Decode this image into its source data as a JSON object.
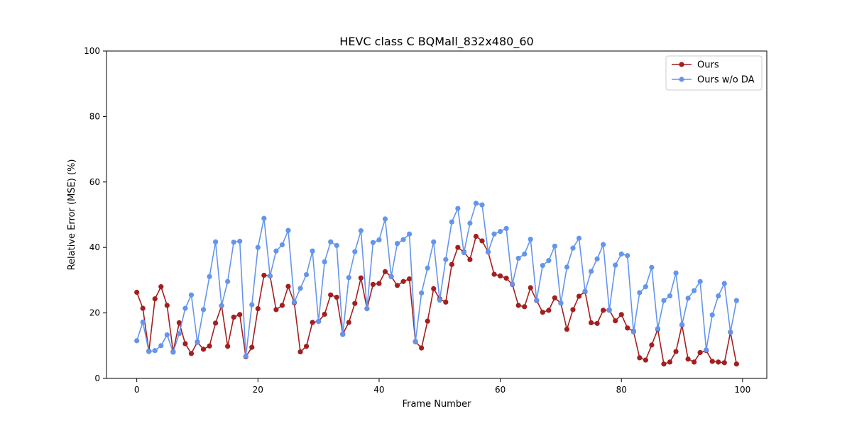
{
  "chart_data": {
    "type": "line",
    "title": "HEVC class C BQMall_832x480_60",
    "xlabel": "Frame Number",
    "ylabel": "Relative Error (MSE) (%)",
    "xlim": [
      -5,
      104
    ],
    "ylim": [
      0,
      100
    ],
    "xticks": [
      0,
      20,
      40,
      60,
      80,
      100
    ],
    "yticks": [
      0,
      20,
      40,
      60,
      80,
      100
    ],
    "grid": false,
    "legend_position": "top-right",
    "x": [
      0,
      1,
      2,
      3,
      4,
      5,
      6,
      7,
      8,
      9,
      10,
      11,
      12,
      13,
      14,
      15,
      16,
      17,
      18,
      19,
      20,
      21,
      22,
      23,
      24,
      25,
      26,
      27,
      28,
      29,
      30,
      31,
      32,
      33,
      34,
      35,
      36,
      37,
      38,
      39,
      40,
      41,
      42,
      43,
      44,
      45,
      46,
      47,
      48,
      49,
      50,
      51,
      52,
      53,
      54,
      55,
      56,
      57,
      58,
      59,
      60,
      61,
      62,
      63,
      64,
      65,
      66,
      67,
      68,
      69,
      70,
      71,
      72,
      73,
      74,
      75,
      76,
      77,
      78,
      79,
      80,
      81,
      82,
      83,
      84,
      85,
      86,
      87,
      88,
      89,
      90,
      91,
      92,
      93,
      94,
      95,
      96,
      97,
      98,
      99
    ],
    "series": [
      {
        "name": "Ours",
        "color": "#a31f1f",
        "values": [
          26.3,
          21.4,
          8.3,
          24.3,
          28.0,
          22.3,
          8.1,
          17.0,
          10.6,
          7.6,
          11.1,
          8.9,
          9.9,
          16.9,
          22.2,
          9.8,
          18.7,
          19.5,
          6.6,
          9.5,
          21.3,
          31.5,
          31.3,
          21.0,
          22.3,
          28.1,
          23.1,
          8.1,
          9.8,
          17.1,
          17.4,
          19.6,
          25.5,
          24.8,
          13.5,
          17.1,
          22.9,
          30.7,
          21.3,
          28.7,
          29.0,
          32.6,
          31.1,
          28.4,
          29.6,
          30.4,
          11.2,
          9.3,
          17.5,
          27.4,
          24.3,
          23.3,
          34.8,
          40.0,
          38.6,
          36.3,
          43.4,
          42.0,
          38.6,
          31.8,
          31.3,
          30.6,
          28.7,
          22.3,
          21.9,
          27.7,
          23.8,
          20.2,
          20.8,
          24.6,
          23.0,
          15.0,
          21.0,
          25.1,
          26.5,
          17.0,
          16.8,
          20.8,
          20.9,
          17.6,
          19.5,
          15.4,
          14.4,
          6.3,
          5.6,
          10.2,
          15.0,
          4.4,
          5.0,
          8.2,
          16.3,
          5.9,
          5.0,
          7.9,
          8.5,
          5.2,
          5.0,
          4.8,
          14.1,
          4.4
        ]
      },
      {
        "name": "Ours w/o DA",
        "color": "#6495ed",
        "values": [
          11.5,
          17.2,
          8.2,
          8.5,
          10.0,
          13.3,
          8.0,
          13.7,
          21.4,
          25.5,
          11.0,
          21.0,
          31.1,
          41.7,
          22.2,
          29.6,
          41.6,
          41.9,
          6.8,
          22.5,
          40.0,
          48.9,
          31.3,
          38.9,
          40.8,
          45.2,
          23.3,
          27.5,
          31.7,
          38.9,
          17.4,
          35.6,
          41.7,
          40.6,
          13.4,
          30.8,
          38.7,
          45.1,
          21.3,
          41.5,
          42.3,
          48.7,
          31.1,
          41.2,
          42.4,
          44.1,
          11.3,
          26.1,
          33.7,
          41.7,
          23.9,
          36.3,
          47.8,
          51.9,
          38.4,
          47.4,
          53.5,
          53.0,
          38.6,
          44.1,
          44.9,
          45.8,
          28.8,
          36.7,
          38.0,
          42.5,
          23.9,
          34.5,
          36.0,
          40.4,
          23.0,
          34.0,
          39.8,
          42.8,
          26.6,
          32.7,
          36.5,
          40.9,
          20.8,
          34.6,
          38.0,
          37.5,
          14.2,
          26.2,
          28.0,
          33.9,
          15.2,
          23.8,
          25.2,
          32.2,
          16.4,
          24.5,
          26.8,
          29.6,
          8.7,
          19.4,
          25.2,
          29.0,
          14.1,
          23.8
        ]
      }
    ]
  }
}
